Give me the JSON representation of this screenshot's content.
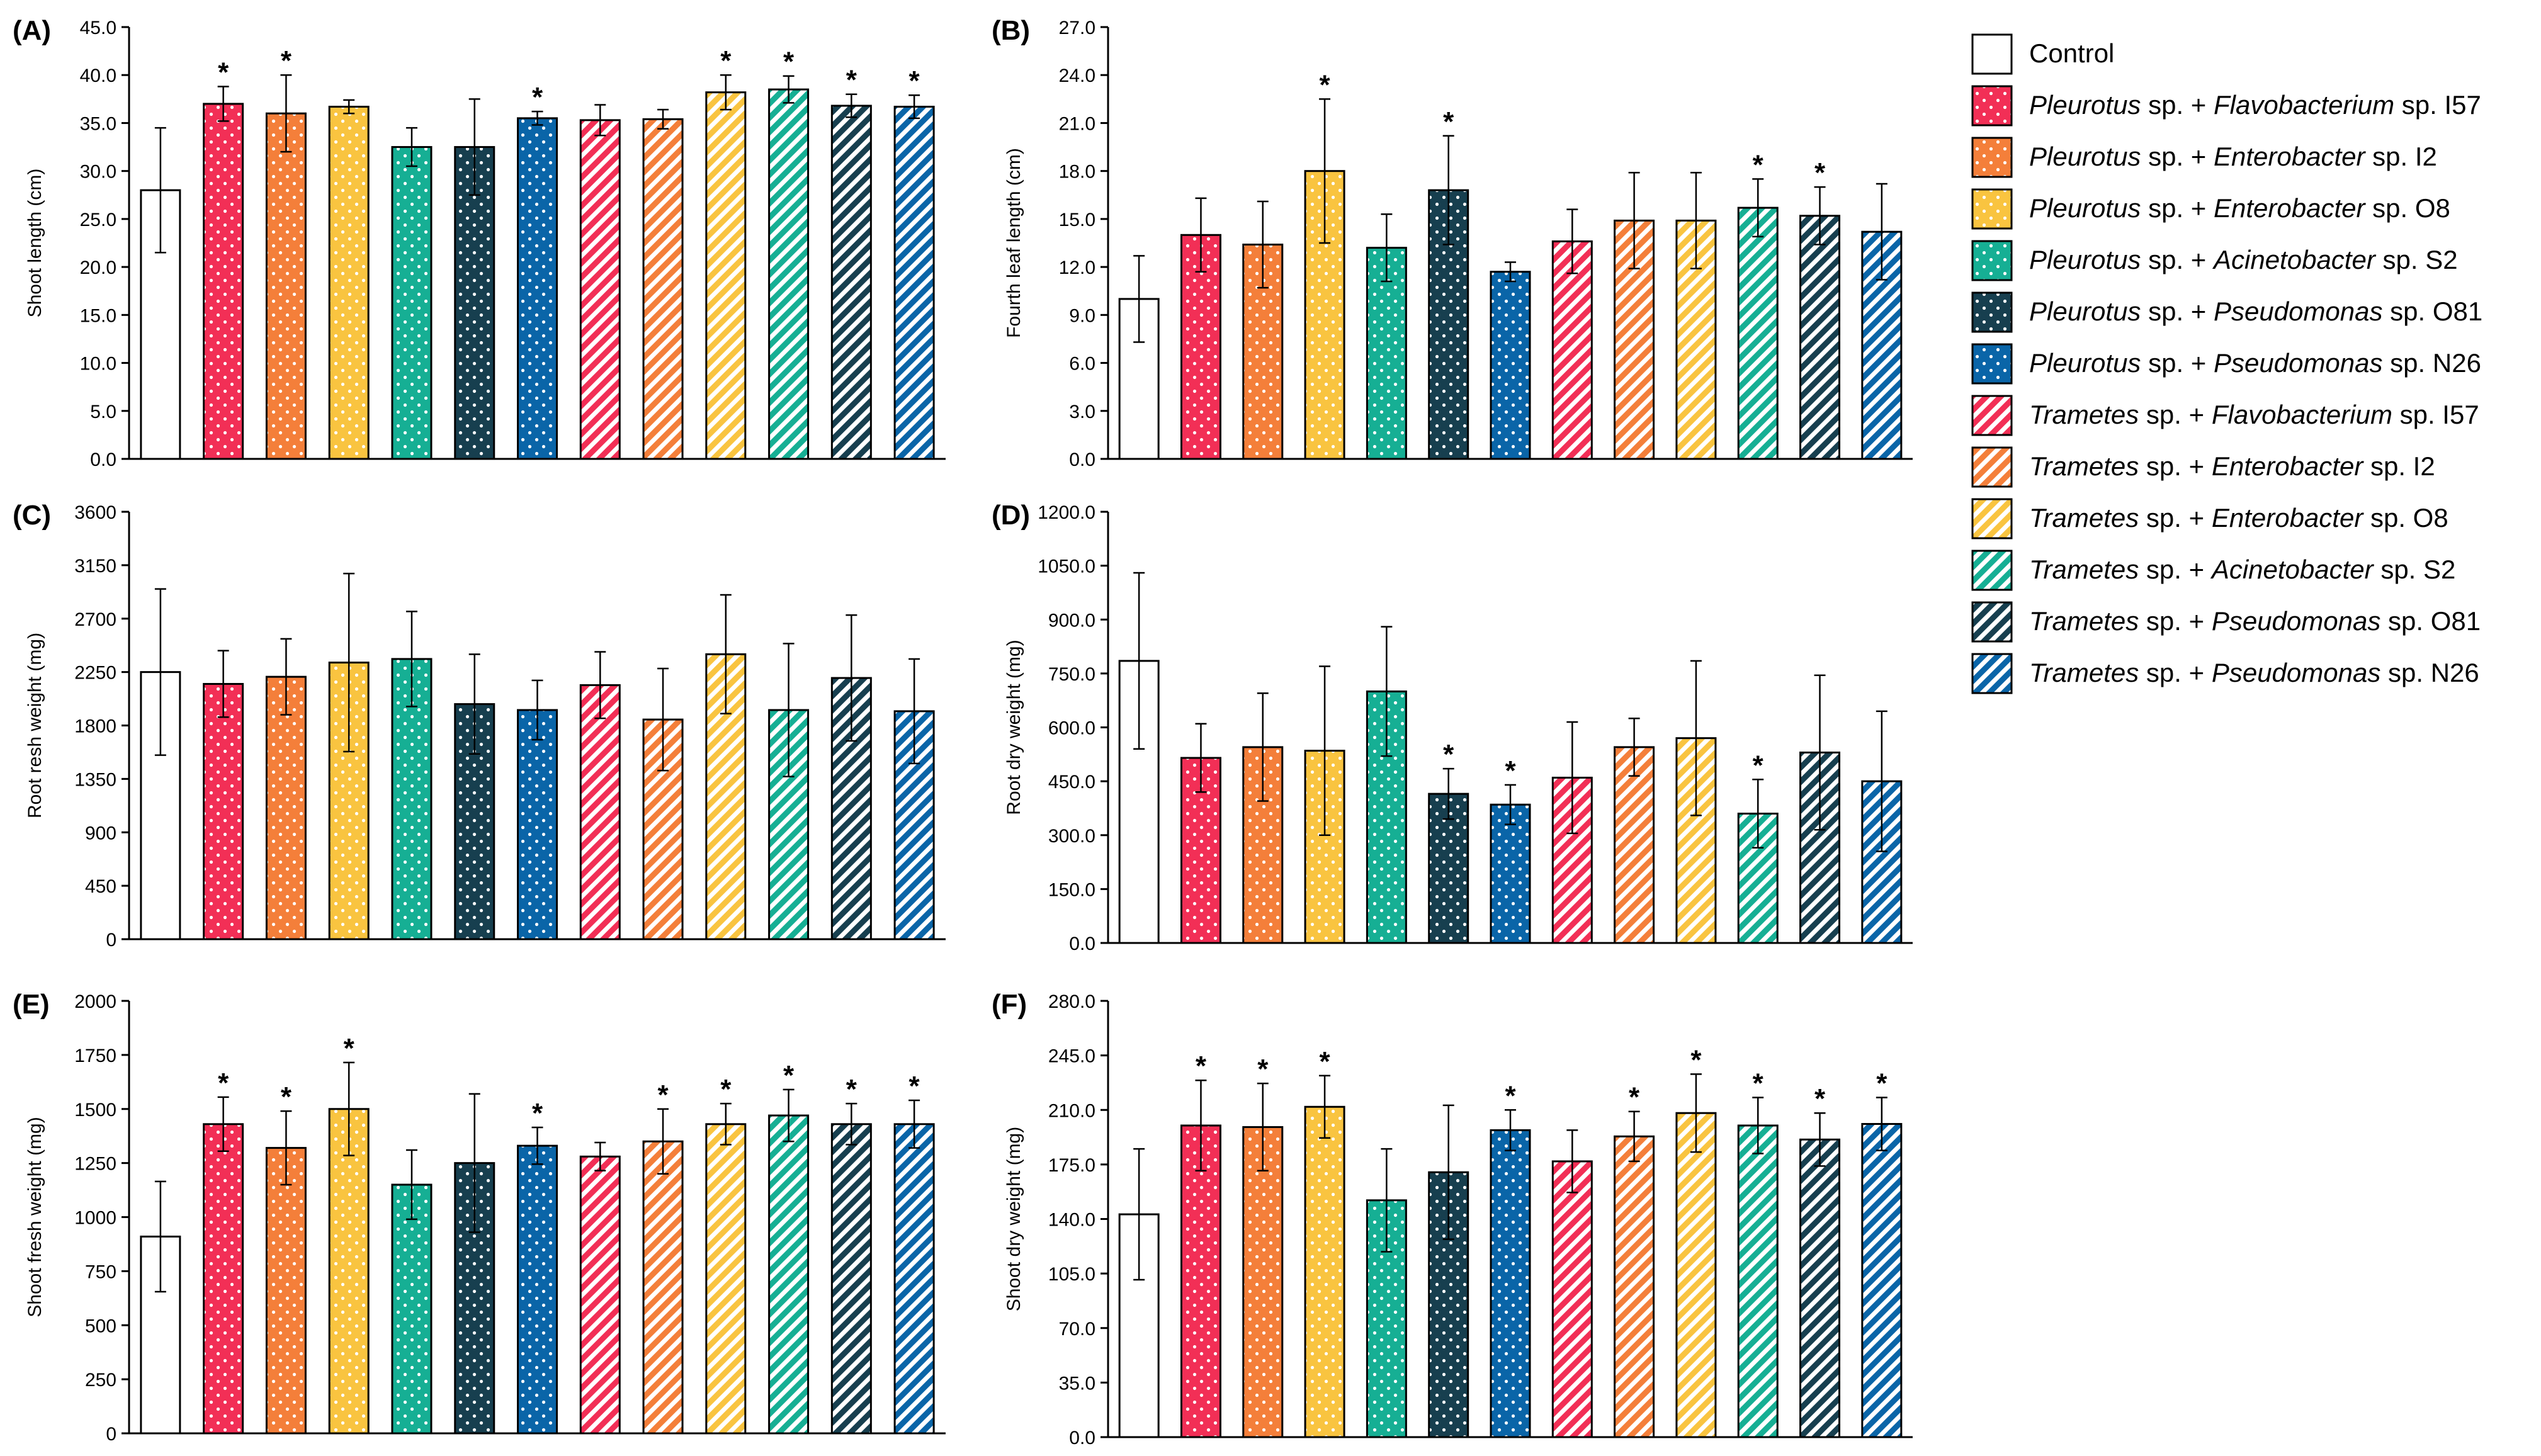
{
  "legend": {
    "entries": [
      {
        "genus": "",
        "bacterium": "",
        "strain": "Control",
        "color": "#ffffff",
        "pattern": "none"
      },
      {
        "genus": "Pleurotus",
        "bacterium": "Flavobacterium",
        "strain": " sp. I57",
        "color": "#f22f56",
        "pattern": "dots"
      },
      {
        "genus": "Pleurotus",
        "bacterium": "Enterobacter",
        "strain": " sp. I2",
        "color": "#f47f3a",
        "pattern": "dots"
      },
      {
        "genus": "Pleurotus",
        "bacterium": "Enterobacter",
        "strain": " sp. O8",
        "color": "#f9c440",
        "pattern": "dots"
      },
      {
        "genus": "Pleurotus",
        "bacterium": "Acinetobacter",
        "strain": " sp. S2",
        "color": "#16af94",
        "pattern": "dots"
      },
      {
        "genus": "Pleurotus",
        "bacterium": "Pseudomonas",
        "strain": " sp. O81",
        "color": "#173f4f",
        "pattern": "dots"
      },
      {
        "genus": "Pleurotus",
        "bacterium": "Pseudomonas",
        "strain": " sp. N26",
        "color": "#0a65a8",
        "pattern": "dots"
      },
      {
        "genus": "Trametes",
        "bacterium": "Flavobacterium",
        "strain": " sp. I57",
        "color": "#f22f56",
        "pattern": "stripes"
      },
      {
        "genus": "Trametes",
        "bacterium": "Enterobacter",
        "strain": " sp. I2",
        "color": "#f47f3a",
        "pattern": "stripes"
      },
      {
        "genus": "Trametes",
        "bacterium": "Enterobacter",
        "strain": " sp. O8",
        "color": "#f9c440",
        "pattern": "stripes"
      },
      {
        "genus": "Trametes",
        "bacterium": "Acinetobacter",
        "strain": " sp. S2",
        "color": "#16af94",
        "pattern": "stripes"
      },
      {
        "genus": "Trametes",
        "bacterium": "Pseudomonas",
        "strain": " sp. O81",
        "color": "#173f4f",
        "pattern": "stripes"
      },
      {
        "genus": "Trametes",
        "bacterium": "Pseudomonas",
        "strain": " sp. N26",
        "color": "#0a65a8",
        "pattern": "stripes"
      }
    ],
    "sp_label": " sp. + "
  },
  "chart_data": [
    {
      "type": "bar",
      "panel": "(A)",
      "ylabel": "Shoot length (cm)",
      "ylim": [
        0,
        45
      ],
      "yticks": [
        "0.0",
        "5.0",
        "10.0",
        "15.0",
        "20.0",
        "25.0",
        "30.0",
        "35.0",
        "40.0",
        "45.0"
      ],
      "values": [
        28.0,
        37.0,
        36.0,
        36.7,
        32.5,
        32.5,
        35.5,
        35.3,
        35.4,
        38.2,
        38.5,
        36.8,
        36.7
      ],
      "errors": [
        6.5,
        1.8,
        4.0,
        0.7,
        2.0,
        5.0,
        0.7,
        1.6,
        1.0,
        1.8,
        1.4,
        1.2,
        1.2
      ],
      "significant": [
        false,
        true,
        true,
        false,
        false,
        false,
        true,
        false,
        false,
        true,
        true,
        true,
        true
      ]
    },
    {
      "type": "bar",
      "panel": "(B)",
      "ylabel": "Fourth leaf length (cm)",
      "ylim": [
        0,
        27
      ],
      "yticks": [
        "0.0",
        "3.0",
        "6.0",
        "9.0",
        "12.0",
        "15.0",
        "18.0",
        "21.0",
        "24.0",
        "27.0"
      ],
      "values": [
        10.0,
        14.0,
        13.4,
        18.0,
        13.2,
        16.8,
        11.7,
        13.6,
        14.9,
        14.9,
        15.7,
        15.2,
        14.2
      ],
      "errors": [
        2.7,
        2.3,
        2.7,
        4.5,
        2.1,
        3.4,
        0.6,
        2.0,
        3.0,
        3.0,
        1.8,
        1.8,
        3.0
      ],
      "significant": [
        false,
        false,
        false,
        true,
        false,
        true,
        false,
        false,
        false,
        false,
        true,
        true,
        false
      ]
    },
    {
      "type": "bar",
      "panel": "(C)",
      "ylabel": "Root resh weight (mg)",
      "ylim": [
        0,
        3600
      ],
      "yticks": [
        "0",
        "450",
        "900",
        "1350",
        "1800",
        "2250",
        "2700",
        "3150",
        "3600"
      ],
      "values": [
        2250,
        2150,
        2210,
        2330,
        2360,
        1980,
        1930,
        2140,
        1850,
        2400,
        1930,
        2200,
        1920
      ],
      "errors": [
        700,
        280,
        320,
        750,
        400,
        420,
        250,
        280,
        430,
        500,
        560,
        530,
        440
      ],
      "significant": [
        false,
        false,
        false,
        false,
        false,
        false,
        false,
        false,
        false,
        false,
        false,
        false,
        false
      ]
    },
    {
      "type": "bar",
      "panel": "(D)",
      "ylabel": "Root dry weight (mg)",
      "ylim": [
        0,
        1200
      ],
      "yticks": [
        "0.0",
        "150.0",
        "300.0",
        "450.0",
        "600.0",
        "750.0",
        "900.0",
        "1050.0",
        "1200.0"
      ],
      "values": [
        785,
        515,
        545,
        535,
        700,
        415,
        385,
        460,
        545,
        570,
        360,
        530,
        450
      ],
      "errors": [
        245,
        95,
        150,
        235,
        180,
        70,
        55,
        155,
        80,
        215,
        95,
        215,
        195
      ],
      "significant": [
        false,
        false,
        false,
        false,
        false,
        true,
        true,
        false,
        false,
        false,
        true,
        false,
        false
      ]
    },
    {
      "type": "bar",
      "panel": "(E)",
      "ylabel": "Shoot fresh weight (mg)",
      "ylim": [
        0,
        2000
      ],
      "yticks": [
        "0",
        "250",
        "500",
        "750",
        "1000",
        "1250",
        "1500",
        "1750",
        "2000"
      ],
      "values": [
        910,
        1430,
        1320,
        1500,
        1150,
        1250,
        1330,
        1280,
        1350,
        1430,
        1470,
        1430,
        1430
      ],
      "errors": [
        255,
        125,
        170,
        215,
        160,
        320,
        85,
        65,
        150,
        95,
        120,
        95,
        110
      ],
      "significant": [
        false,
        true,
        true,
        true,
        false,
        false,
        true,
        false,
        true,
        true,
        true,
        true,
        true
      ]
    },
    {
      "type": "bar",
      "panel": "(F)",
      "ylabel": "Shoot dry weight (mg)",
      "ylim": [
        0,
        280
      ],
      "yticks": [
        "0.0",
        "35.0",
        "70.0",
        "105.0",
        "140.0",
        "175.0",
        "210.0",
        "245.0",
        "280.0"
      ],
      "values": [
        143,
        200,
        199,
        212,
        152,
        170,
        197,
        177,
        193,
        208,
        200,
        191,
        201
      ],
      "errors": [
        42,
        29,
        28,
        20,
        33,
        43,
        13,
        20,
        16,
        25,
        18,
        17,
        17
      ],
      "significant": [
        false,
        true,
        true,
        true,
        false,
        false,
        true,
        false,
        true,
        true,
        true,
        true,
        true
      ]
    }
  ]
}
